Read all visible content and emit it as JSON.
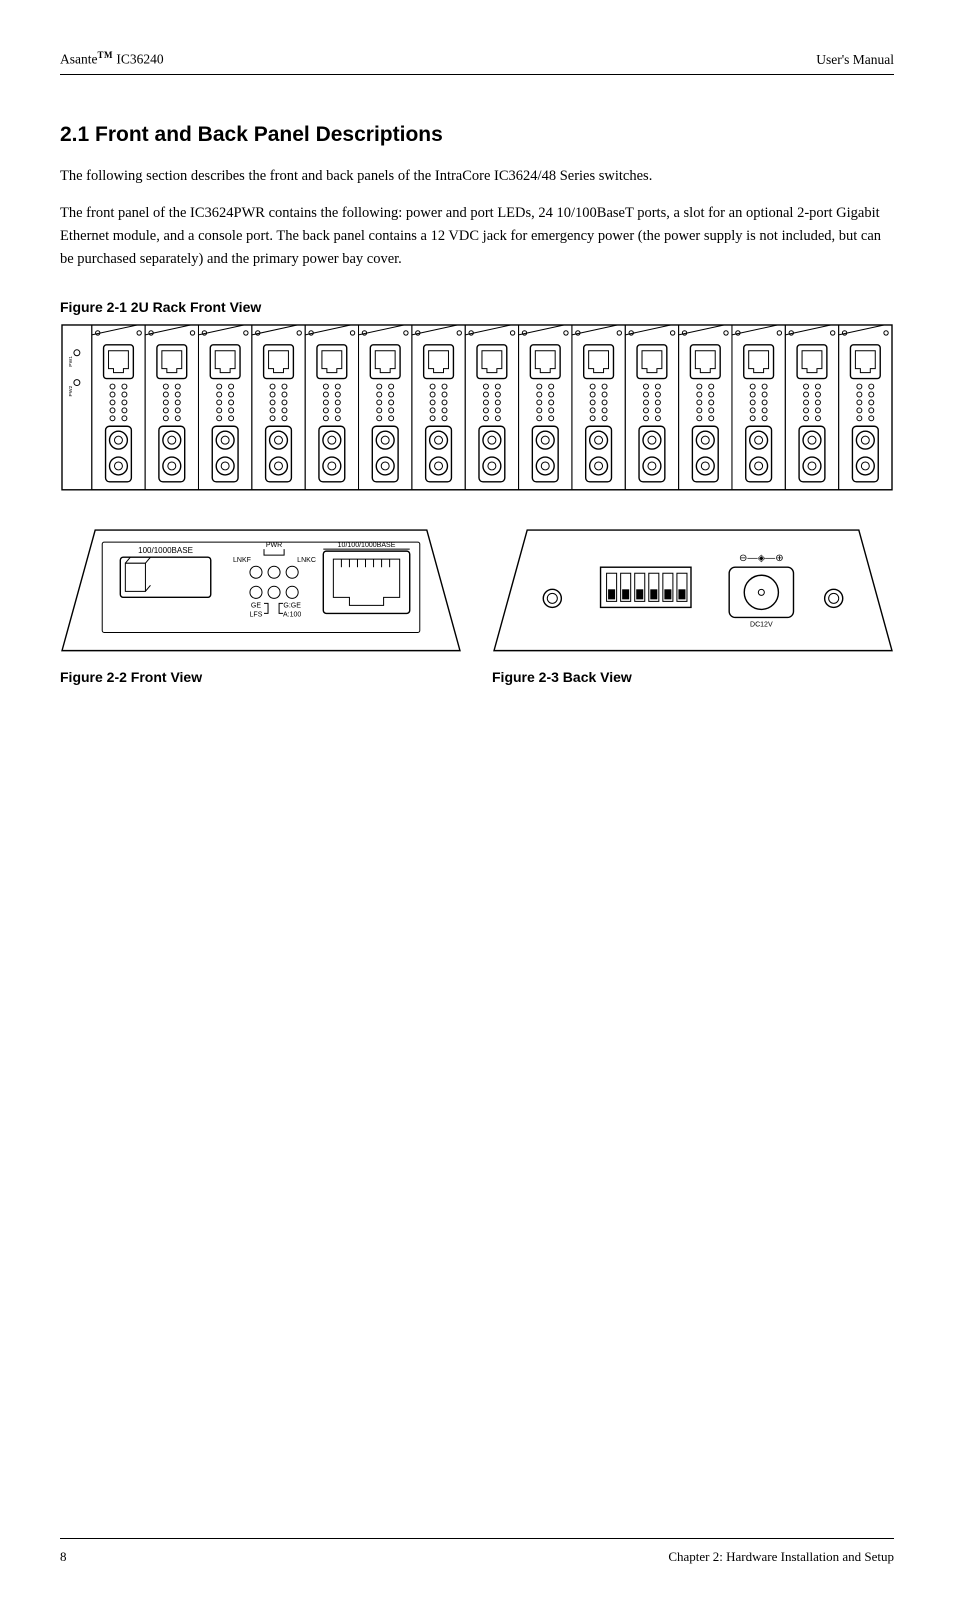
{
  "header": {
    "left_prefix": "Asante",
    "left_tm": "TM",
    "left_suffix": " IC36240",
    "right": "User's Manual"
  },
  "section": {
    "title": "2.1 Front and Back Panel Descriptions",
    "paragraphs": [
      "The following section describes the front and back panels of the IntraCore IC3624/48 Series switches.",
      "The front panel of the IC3624PWR contains the following: power and port LEDs, 24 10/100BaseT ports, a slot for an optional 2-port Gigabit Ethernet module, and a console port.  The back panel contains a 12 VDC jack for emergency power (the power supply is not included, but can be purchased separately) and the primary power bay cover."
    ]
  },
  "figures": {
    "rack": {
      "caption": "Figure 2-1  2U Rack Front View",
      "slots": 15
    },
    "front": {
      "caption": "Figure 2-2 Front View",
      "labels": {
        "sfp": "100/1000BASE",
        "pwr": "PWR",
        "lnkf": "LNKF",
        "lnkc": "LNKC",
        "ge": "GE",
        "lfs": "LFS",
        "gge": "G:GE",
        "a100": "A:100",
        "rj": "10/100/1000BASE"
      }
    },
    "back": {
      "caption": "Figure 2-3  Back View",
      "labels": {
        "polarity": "⊖—◈—⊕",
        "dc": "DC12V"
      }
    }
  },
  "footer": {
    "page": "8",
    "chapter": "Chapter 2: Hardware Installation and Setup"
  }
}
